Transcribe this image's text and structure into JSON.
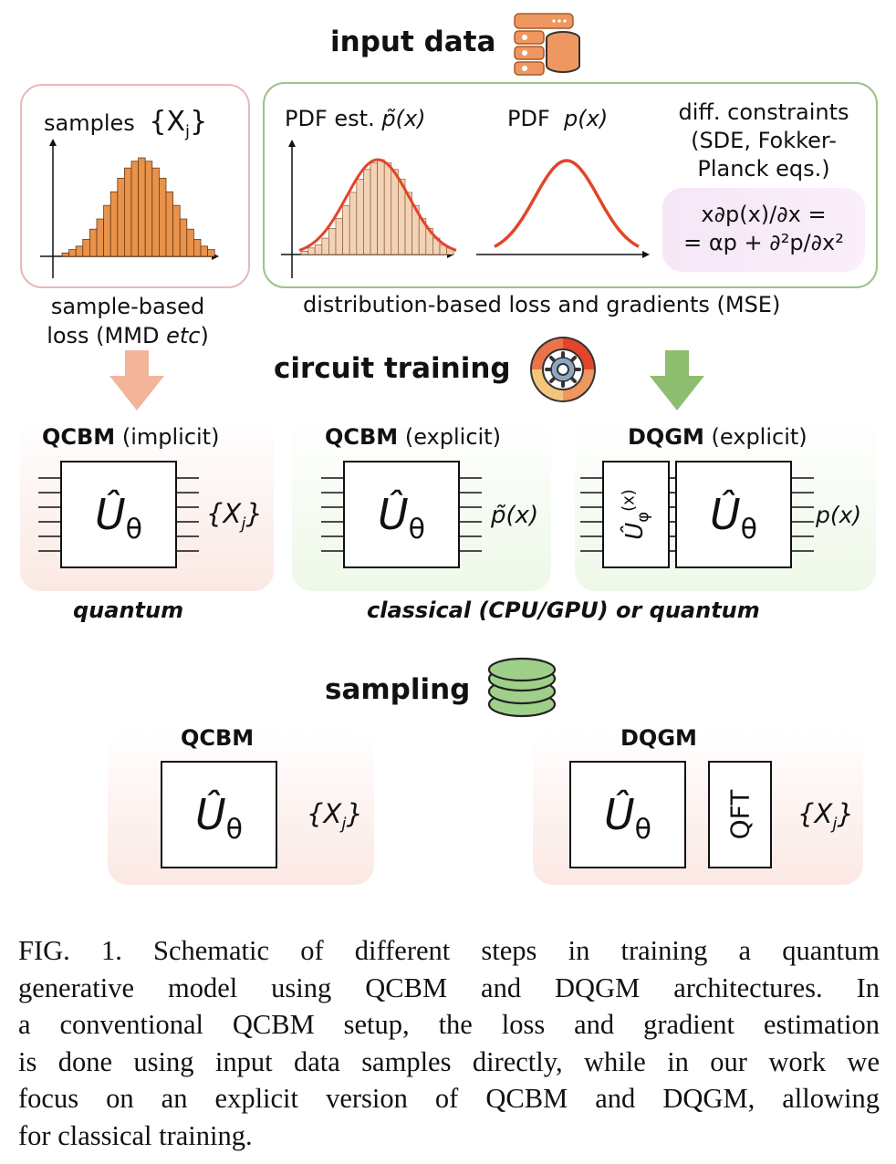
{
  "figure": {
    "input_title": "input data",
    "samples_panel": {
      "label": "samples",
      "set": "{X",
      "set_sub": "j",
      "set_close": "}"
    },
    "pdf_est_label": "PDF est.",
    "pdf_est_symbol": "p̃(x)",
    "pdf_label": "PDF",
    "pdf_symbol": "p(x)",
    "diff_constraints": [
      "diff. constraints",
      "(SDE, Fokker-",
      "Planck eqs.)"
    ],
    "equation": [
      "x∂p(x)/∂x =",
      "= αp + ∂²p/∂x²"
    ],
    "sample_loss": [
      "sample-based",
      "loss (MMD "
    ],
    "sample_loss_etc": "etc",
    "sample_loss_close": ")",
    "dist_loss": "distribution-based loss and gradients (MSE)",
    "training_title": "circuit training",
    "card1": {
      "bold": "QCBM",
      "rest": " (implicit)",
      "output": "{X",
      "output_sub": "j",
      "output_close": "}"
    },
    "card2": {
      "bold": "QCBM",
      "rest": " (explicit)",
      "output": "p̃(x)"
    },
    "card3": {
      "bold": "DQGM",
      "rest": " (explicit)",
      "output": "p(x)",
      "feature_gate": "Û",
      "feature_sub": "φ",
      "feature_arg": "(x)"
    },
    "gate_U": "Û",
    "gate_U_sub": "θ",
    "quantum_label": "quantum",
    "classical_label": "classical (CPU/GPU) or quantum",
    "sampling_title": "sampling",
    "sampling_left": {
      "title": "QCBM",
      "output": "{X",
      "output_sub": "j",
      "output_close": "}"
    },
    "sampling_right": {
      "title": "DQGM",
      "qft": "QFT",
      "output": "{X",
      "output_sub": "j",
      "output_close": "}"
    }
  },
  "caption": {
    "lines": [
      "FIG. 1.  Schematic of different steps in training a quantum",
      "generative model using QCBM and DQGM architectures. In",
      "a conventional QCBM setup, the loss and gradient estimation",
      "is done using input data samples directly, while in our work we",
      "focus on an explicit version of QCBM and DQGM, allowing",
      "for classical training."
    ]
  },
  "colors": {
    "bar_orange": "#e8924a",
    "curve_red": "#e2452a",
    "arrow_salmon": "#f2b59a",
    "arrow_green": "#8dbd6e",
    "panel_red_border": "#e9b9b9",
    "panel_green_border": "#9fc187"
  },
  "chart_data": [
    {
      "type": "bar",
      "values": [
        1,
        2,
        3,
        5,
        8,
        11,
        15,
        19,
        23,
        26,
        28,
        29,
        28,
        26,
        23,
        19,
        15,
        11,
        8,
        5,
        3,
        2
      ]
    }
  ]
}
